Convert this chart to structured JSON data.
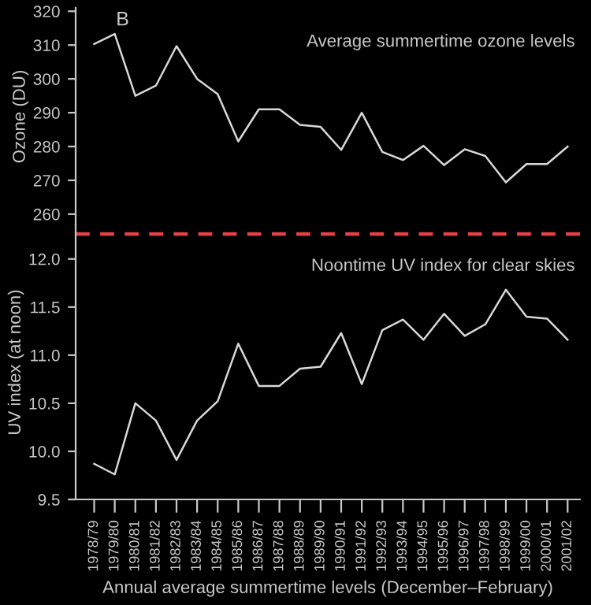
{
  "chart_data": [
    {
      "type": "line",
      "ylabel": "Ozone (DU)",
      "categories": [
        "1978/79",
        "1979/80",
        "1980/81",
        "1981/82",
        "1982/83",
        "1983/84",
        "1984/85",
        "1985/86",
        "1986/87",
        "1987/88",
        "1988/89",
        "1989/90",
        "1990/91",
        "1991/92",
        "1992/93",
        "1993/94",
        "1994/95",
        "1995/96",
        "1996/97",
        "1997/98",
        "1998/99",
        "1999/00",
        "2000/01",
        "2001/02"
      ],
      "series": [
        {
          "color": "#d8d8d8",
          "values": [
            310.3,
            313.3,
            295,
            298,
            309.7,
            300,
            295.5,
            281.5,
            291,
            291,
            286.4,
            285.8,
            279,
            290,
            278.4,
            276,
            280.2,
            274.5,
            279.2,
            277.2,
            269.4,
            274.8,
            274.8,
            280
          ]
        }
      ],
      "ylim": [
        256.7,
        321
      ],
      "yticks": [
        260,
        270,
        280,
        290,
        300,
        310,
        320
      ],
      "tick_labels": "y",
      "annotations": [
        "B",
        "Average summertime ozone levels"
      ]
    },
    {
      "type": "line",
      "xlabel": "Annual average summertime levels (December–February)",
      "ylabel": "UV index (at noon)",
      "categories": [
        "1978/79",
        "1979/80",
        "1980/81",
        "1981/82",
        "1982/83",
        "1983/84",
        "1984/85",
        "1985/86",
        "1986/87",
        "1987/88",
        "1988/89",
        "1989/90",
        "1990/91",
        "1991/92",
        "1992/93",
        "1993/94",
        "1994/95",
        "1995/96",
        "1996/97",
        "1997/98",
        "1998/99",
        "1999/00",
        "2000/01",
        "2001/02"
      ],
      "series": [
        {
          "color": "#d8d8d8",
          "values": [
            9.87,
            9.76,
            10.5,
            10.32,
            9.91,
            10.32,
            10.52,
            11.12,
            10.68,
            10.68,
            10.86,
            10.88,
            11.23,
            10.7,
            11.26,
            11.37,
            11.16,
            11.43,
            11.2,
            11.32,
            11.68,
            11.4,
            11.38,
            11.16
          ]
        }
      ],
      "ylim": [
        9.5,
        12.35
      ],
      "yticks": [
        9.5,
        {
          "value": 10,
          "label": "10.0"
        },
        10.5,
        {
          "value": 11,
          "label": "11.0"
        },
        11.5,
        {
          "value": 12,
          "label": "12.0"
        }
      ],
      "ref_lines": [
        {
          "axis": "y",
          "value": 12.26,
          "color": "#e8404a",
          "line_style": "dashed"
        }
      ],
      "annotations": [
        "Noontime UV index for clear skies"
      ]
    }
  ]
}
